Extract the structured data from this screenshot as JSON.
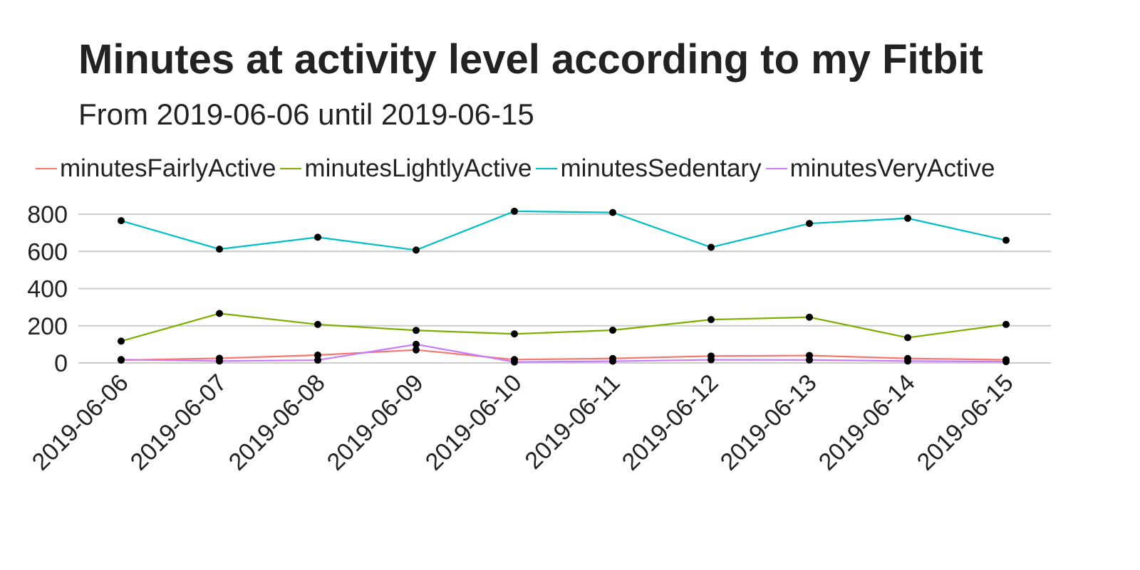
{
  "chart_data": {
    "type": "line",
    "title": "Minutes at activity level according to my Fitbit",
    "subtitle": "From 2019-06-06 until 2019-06-15",
    "xlabel": "",
    "ylabel": "",
    "categories": [
      "2019-06-06",
      "2019-06-07",
      "2019-06-08",
      "2019-06-09",
      "2019-06-10",
      "2019-06-11",
      "2019-06-12",
      "2019-06-13",
      "2019-06-14",
      "2019-06-15"
    ],
    "yticks": [
      "0",
      "200",
      "400",
      "600",
      "800"
    ],
    "ylim": [
      0,
      800
    ],
    "grid": "horizontal",
    "legend_position": "top",
    "point_color": "#000000",
    "series": [
      {
        "name": "minutesFairlyActive",
        "color": "#F8766D",
        "values": [
          15,
          25,
          42,
          70,
          18,
          24,
          37,
          40,
          24,
          17
        ]
      },
      {
        "name": "minutesLightlyActive",
        "color": "#7CAE00",
        "values": [
          117,
          266,
          207,
          175,
          156,
          176,
          233,
          246,
          136,
          207
        ]
      },
      {
        "name": "minutesSedentary",
        "color": "#00BFC4",
        "values": [
          765,
          612,
          676,
          607,
          816,
          809,
          622,
          750,
          778,
          660
        ]
      },
      {
        "name": "minutesVeryActive",
        "color": "#C77CFF",
        "values": [
          18,
          10,
          15,
          100,
          5,
          9,
          17,
          16,
          10,
          7
        ]
      }
    ]
  }
}
